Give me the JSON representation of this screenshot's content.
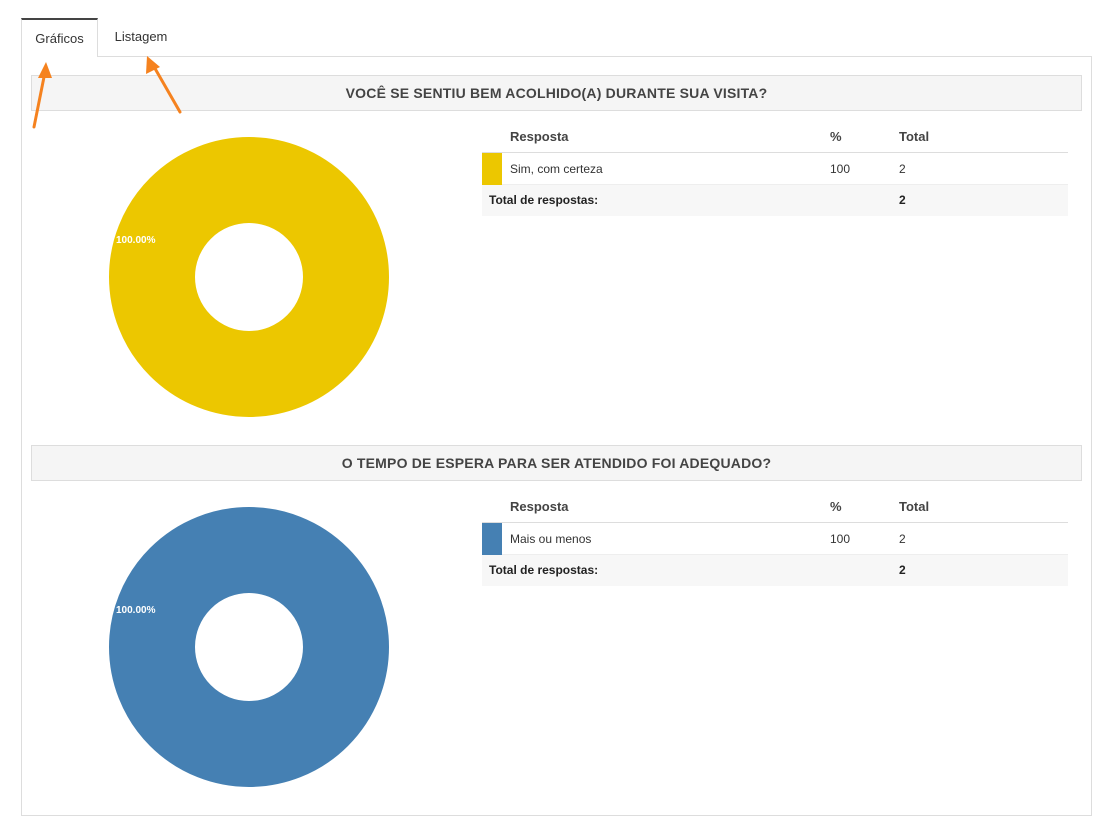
{
  "tabs": [
    {
      "label": "Gráficos",
      "active": true
    },
    {
      "label": "Listagem",
      "active": false
    }
  ],
  "columns": {
    "resposta": "Resposta",
    "percent": "%",
    "total": "Total"
  },
  "questions": [
    {
      "title": "VOCÊ SE SENTIU BEM ACOLHIDO(A) DURANTE SUA VISITA?",
      "color": "#ecc700",
      "answer": "Sim, com certeza",
      "percent": "100",
      "total": "2",
      "total_label": "Total de respostas:",
      "total_value": "2",
      "slice_label": "100.00%",
      "chart_value": 100
    },
    {
      "title": "O TEMPO DE ESPERA PARA SER ATENDIDO FOI ADEQUADO?",
      "color": "#4580b3",
      "answer": "Mais ou menos",
      "percent": "100",
      "total": "2",
      "total_label": "Total de respostas:",
      "total_value": "2",
      "slice_label": "100.00%",
      "chart_value": 100
    }
  ],
  "annotation_color": "#f5821f"
}
